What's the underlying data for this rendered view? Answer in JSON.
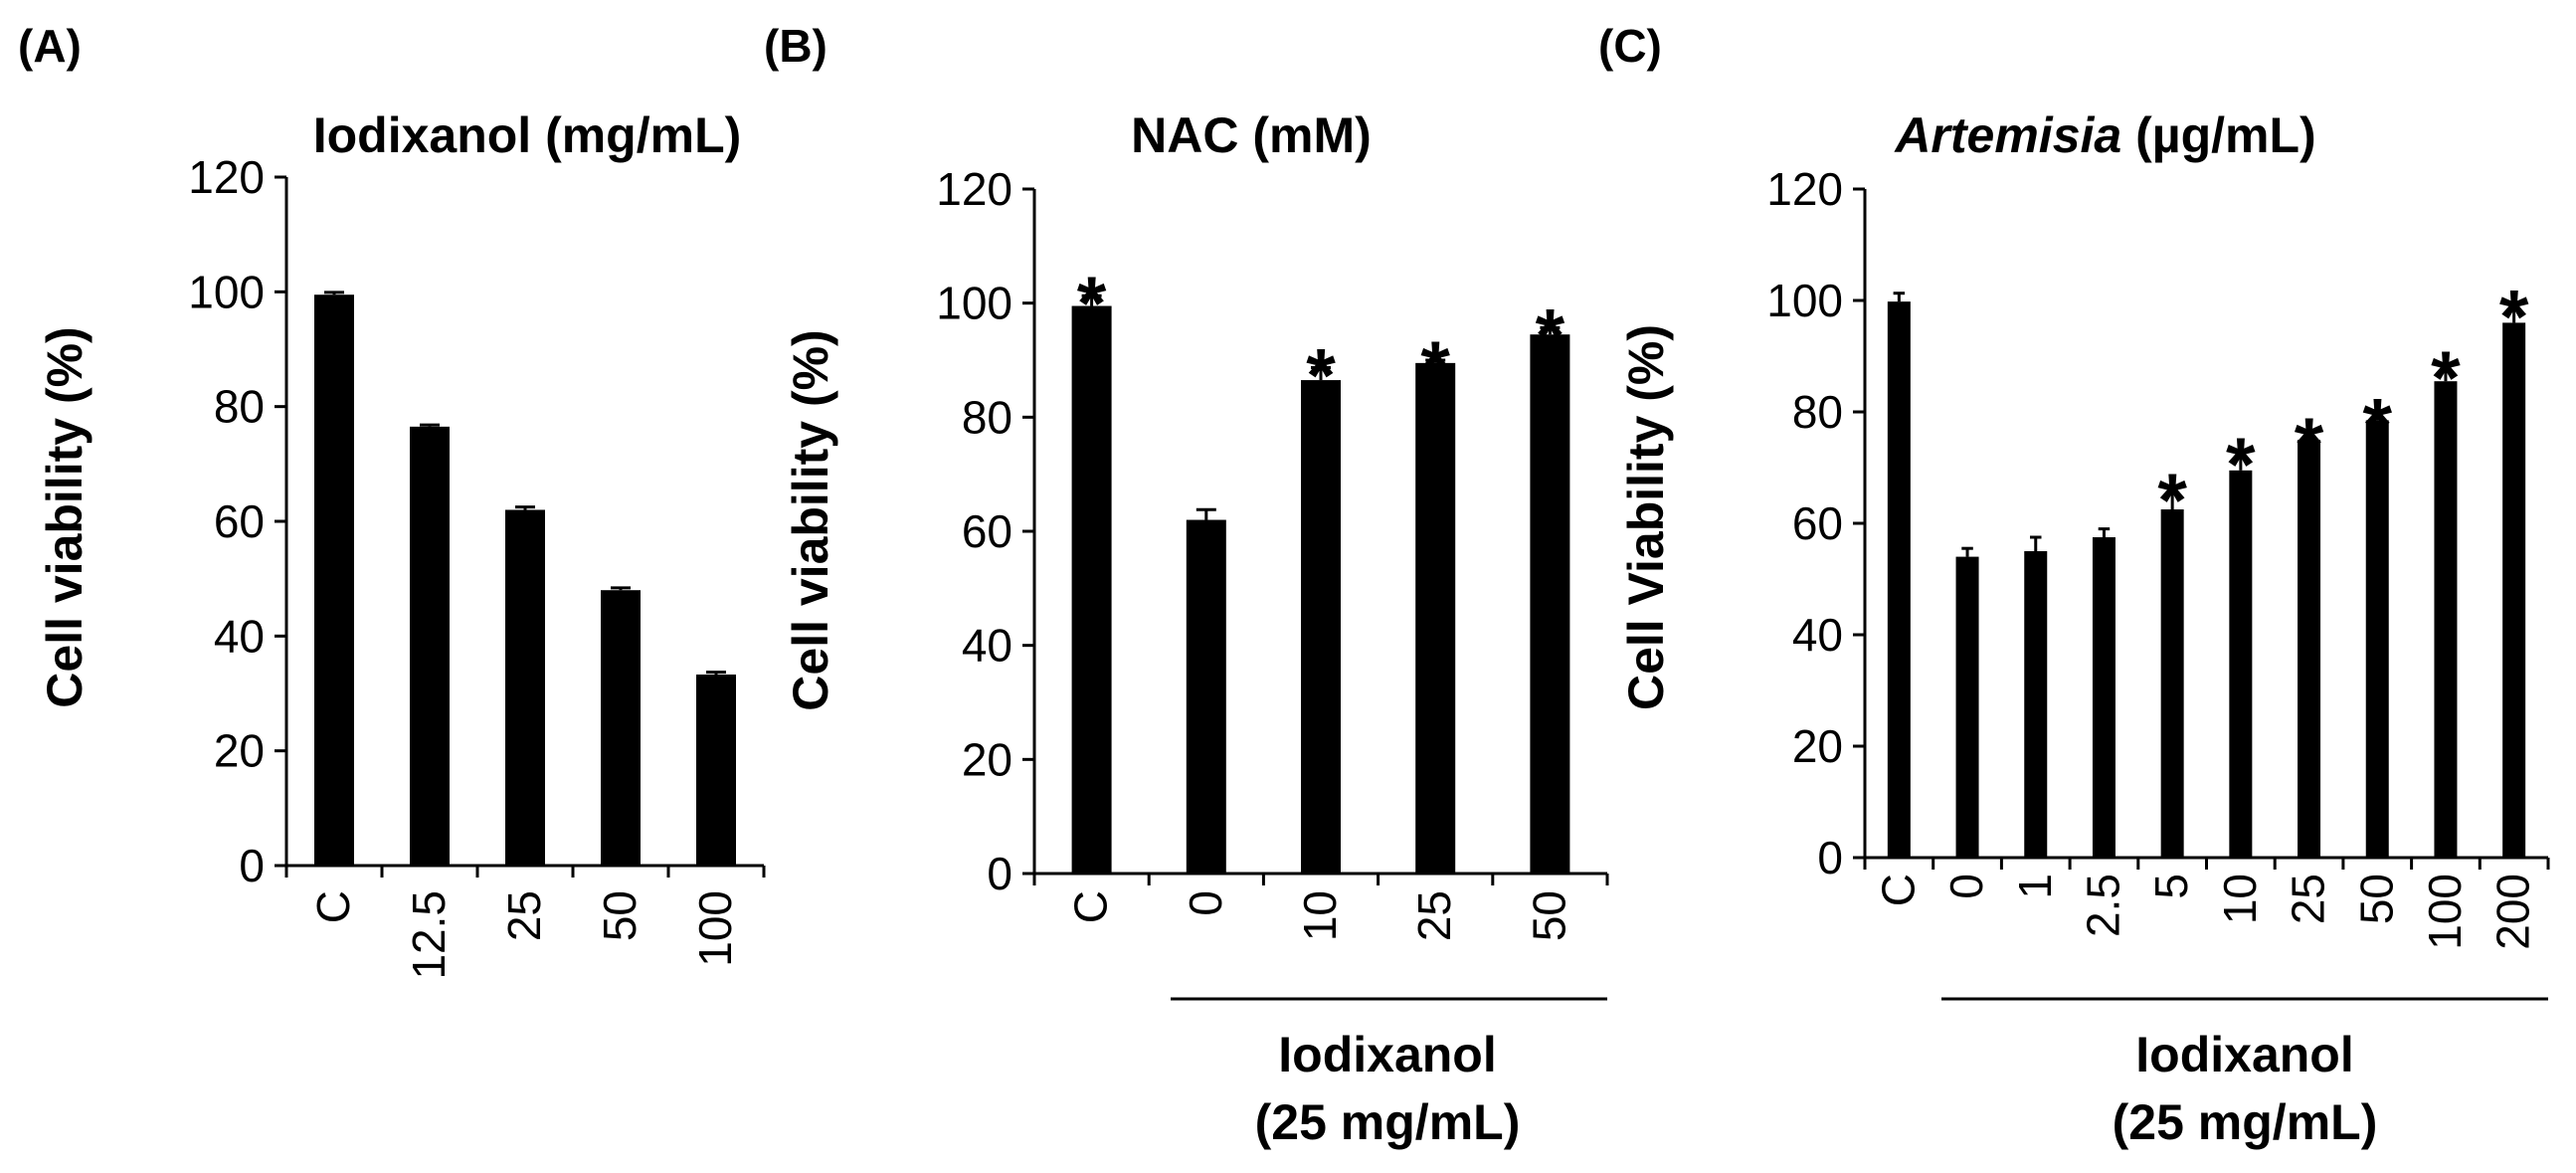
{
  "chart_data": [
    {
      "type": "bar",
      "panel": "(A)",
      "title": {
        "main": "Iodixanol (mg/mL)",
        "italic": "",
        "rest": ""
      },
      "xlabel": "",
      "ylabel": "Cell viability (%)",
      "ylim": [
        0,
        120
      ],
      "yticks": [
        0,
        20,
        40,
        60,
        80,
        100,
        120
      ],
      "categories": [
        "C",
        "12.5",
        "25",
        "50",
        "100"
      ],
      "values": [
        99.5,
        76.5,
        62,
        48,
        33.3
      ],
      "errors": [
        0.4,
        0.3,
        0.5,
        0.4,
        0.4
      ],
      "significance": [
        "",
        "",
        "",
        "",
        ""
      ],
      "group_label": null,
      "color": "#000000"
    },
    {
      "type": "bar",
      "panel": "(B)",
      "title": {
        "main": "NAC (mM)",
        "italic": "",
        "rest": ""
      },
      "xlabel": "",
      "ylabel": "Cell viability (%)",
      "ylim": [
        0,
        120
      ],
      "yticks": [
        0,
        20,
        40,
        60,
        80,
        100,
        120
      ],
      "categories": [
        "C",
        "0",
        "10",
        "25",
        "50"
      ],
      "values": [
        99.5,
        62,
        86.5,
        89.5,
        94.5
      ],
      "errors": [
        1.8,
        1.8,
        2.2,
        0.5,
        1.2
      ],
      "significance": [
        "*",
        "",
        "*",
        "*",
        "*"
      ],
      "group_label": {
        "line1": "Iodixanol",
        "line2": "(25 mg/mL)"
      },
      "color": "#000000"
    },
    {
      "type": "bar",
      "panel": "(C)",
      "title": {
        "main": "",
        "italic": "Artemisia",
        "rest": " (µg/mL)"
      },
      "xlabel": "",
      "ylabel": "Cell Viability (%)",
      "ylim": [
        0,
        120
      ],
      "yticks": [
        0,
        20,
        40,
        60,
        80,
        100,
        120
      ],
      "categories": [
        "C",
        "0",
        "1",
        "2.5",
        "5",
        "10",
        "25",
        "50",
        "100",
        "200"
      ],
      "values": [
        99.8,
        54,
        55,
        57.5,
        62.5,
        69.5,
        75,
        78.5,
        85.5,
        96
      ],
      "errors": [
        1.5,
        1.5,
        2.5,
        1.5,
        3.0,
        2.5,
        0.5,
        0.5,
        2.0,
        2.5
      ],
      "significance": [
        "",
        "",
        "",
        "",
        "*",
        "*",
        "*",
        "*",
        "*",
        "*"
      ],
      "group_label": {
        "line1": "Iodixanol",
        "line2": "(25 mg/mL)"
      },
      "color": "#000000"
    }
  ]
}
